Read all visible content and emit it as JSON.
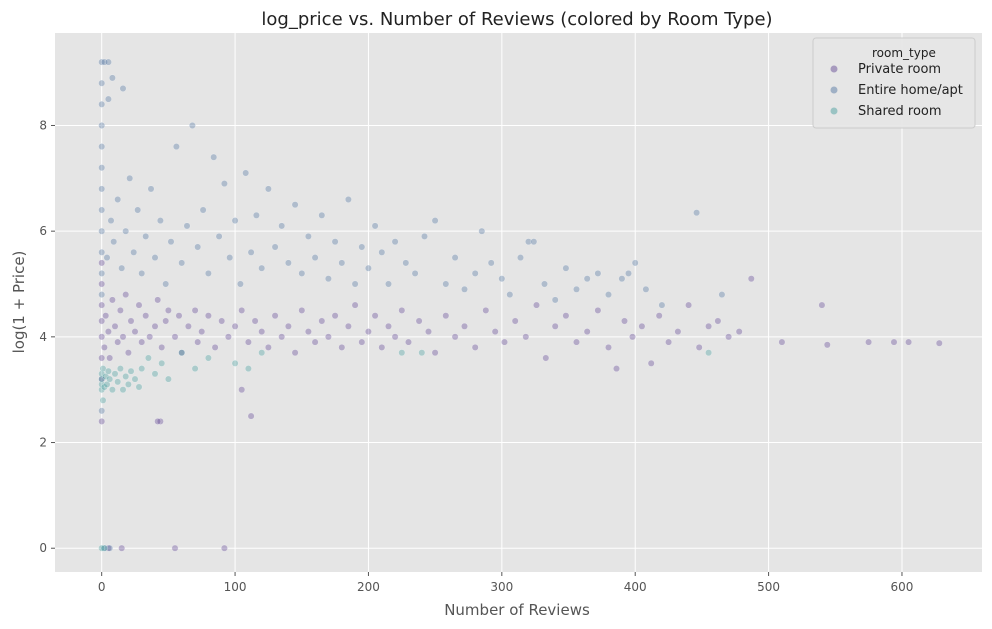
{
  "chart_data": {
    "type": "scatter",
    "title": "log_price vs. Number of Reviews (colored by Room Type)",
    "xlabel": "Number of Reviews",
    "ylabel": "log(1 + Price)",
    "xlim": [
      -35,
      660
    ],
    "ylim": [
      -0.45,
      9.75
    ],
    "xticks": [
      0,
      100,
      200,
      300,
      400,
      500,
      600
    ],
    "yticks": [
      0,
      2,
      4,
      6,
      8
    ],
    "grid": true,
    "legend_title": "room_type",
    "legend_position": "top-right",
    "point_alpha": 0.35,
    "series": [
      {
        "name": "Private room",
        "color": "#5a3d8f",
        "points": [
          [
            0,
            2.4
          ],
          [
            0,
            3.2
          ],
          [
            0,
            3.6
          ],
          [
            0,
            4.0
          ],
          [
            0,
            4.3
          ],
          [
            0,
            4.6
          ],
          [
            0,
            5.0
          ],
          [
            0,
            5.4
          ],
          [
            2,
            3.8
          ],
          [
            3,
            4.4
          ],
          [
            5,
            4.1
          ],
          [
            6,
            3.6
          ],
          [
            8,
            4.7
          ],
          [
            10,
            4.2
          ],
          [
            12,
            3.9
          ],
          [
            14,
            4.5
          ],
          [
            16,
            4.0
          ],
          [
            18,
            4.8
          ],
          [
            20,
            3.7
          ],
          [
            22,
            4.3
          ],
          [
            25,
            4.1
          ],
          [
            28,
            4.6
          ],
          [
            30,
            3.9
          ],
          [
            33,
            4.4
          ],
          [
            36,
            4.0
          ],
          [
            40,
            4.2
          ],
          [
            42,
            4.7
          ],
          [
            45,
            3.8
          ],
          [
            48,
            4.3
          ],
          [
            50,
            4.5
          ],
          [
            55,
            4.0
          ],
          [
            58,
            4.4
          ],
          [
            60,
            3.7
          ],
          [
            65,
            4.2
          ],
          [
            70,
            4.5
          ],
          [
            72,
            3.9
          ],
          [
            75,
            4.1
          ],
          [
            80,
            4.4
          ],
          [
            85,
            3.8
          ],
          [
            90,
            4.3
          ],
          [
            95,
            4.0
          ],
          [
            100,
            4.2
          ],
          [
            105,
            4.5
          ],
          [
            110,
            3.9
          ],
          [
            115,
            4.3
          ],
          [
            120,
            4.1
          ],
          [
            125,
            3.8
          ],
          [
            130,
            4.4
          ],
          [
            135,
            4.0
          ],
          [
            140,
            4.2
          ],
          [
            145,
            3.7
          ],
          [
            150,
            4.5
          ],
          [
            155,
            4.1
          ],
          [
            160,
            3.9
          ],
          [
            165,
            4.3
          ],
          [
            170,
            4.0
          ],
          [
            175,
            4.4
          ],
          [
            180,
            3.8
          ],
          [
            185,
            4.2
          ],
          [
            190,
            4.6
          ],
          [
            195,
            3.9
          ],
          [
            200,
            4.1
          ],
          [
            205,
            4.4
          ],
          [
            210,
            3.8
          ],
          [
            215,
            4.2
          ],
          [
            220,
            4.0
          ],
          [
            225,
            4.5
          ],
          [
            230,
            3.9
          ],
          [
            238,
            4.3
          ],
          [
            245,
            4.1
          ],
          [
            250,
            3.7
          ],
          [
            258,
            4.4
          ],
          [
            265,
            4.0
          ],
          [
            272,
            4.2
          ],
          [
            280,
            3.8
          ],
          [
            288,
            4.5
          ],
          [
            295,
            4.1
          ],
          [
            302,
            3.9
          ],
          [
            310,
            4.3
          ],
          [
            318,
            4.0
          ],
          [
            326,
            4.6
          ],
          [
            333,
            3.6
          ],
          [
            340,
            4.2
          ],
          [
            348,
            4.4
          ],
          [
            356,
            3.9
          ],
          [
            364,
            4.1
          ],
          [
            372,
            4.5
          ],
          [
            380,
            3.8
          ],
          [
            386,
            3.4
          ],
          [
            392,
            4.3
          ],
          [
            398,
            4.0
          ],
          [
            405,
            4.2
          ],
          [
            412,
            3.5
          ],
          [
            418,
            4.4
          ],
          [
            425,
            3.9
          ],
          [
            432,
            4.1
          ],
          [
            440,
            4.6
          ],
          [
            448,
            3.8
          ],
          [
            455,
            4.2
          ],
          [
            462,
            4.3
          ],
          [
            470,
            4.0
          ],
          [
            478,
            4.1
          ],
          [
            487,
            5.1
          ],
          [
            510,
            3.9
          ],
          [
            540,
            4.6
          ],
          [
            544,
            3.85
          ],
          [
            575,
            3.9
          ],
          [
            594,
            3.9
          ],
          [
            605,
            3.9
          ],
          [
            628,
            3.88
          ],
          [
            44,
            2.4
          ],
          [
            42,
            2.4
          ],
          [
            105,
            3.0
          ],
          [
            112,
            2.5
          ],
          [
            5,
            0
          ],
          [
            15,
            0
          ],
          [
            55,
            0
          ],
          [
            92,
            0
          ]
        ]
      },
      {
        "name": "Entire home/apt",
        "color": "#4a6f9e",
        "points": [
          [
            0,
            2.6
          ],
          [
            0,
            4.8
          ],
          [
            0,
            5.2
          ],
          [
            0,
            5.6
          ],
          [
            0,
            6.0
          ],
          [
            0,
            6.4
          ],
          [
            0,
            6.8
          ],
          [
            0,
            7.2
          ],
          [
            0,
            7.6
          ],
          [
            0,
            8.0
          ],
          [
            0,
            8.4
          ],
          [
            0,
            8.8
          ],
          [
            0,
            9.2
          ],
          [
            2,
            9.2
          ],
          [
            5,
            9.2
          ],
          [
            5,
            8.5
          ],
          [
            8,
            8.9
          ],
          [
            16,
            8.7
          ],
          [
            4,
            5.5
          ],
          [
            7,
            6.2
          ],
          [
            9,
            5.8
          ],
          [
            12,
            6.6
          ],
          [
            15,
            5.3
          ],
          [
            18,
            6.0
          ],
          [
            21,
            7.0
          ],
          [
            24,
            5.6
          ],
          [
            27,
            6.4
          ],
          [
            30,
            5.2
          ],
          [
            33,
            5.9
          ],
          [
            37,
            6.8
          ],
          [
            40,
            5.5
          ],
          [
            44,
            6.2
          ],
          [
            48,
            5.0
          ],
          [
            52,
            5.8
          ],
          [
            56,
            7.6
          ],
          [
            60,
            5.4
          ],
          [
            64,
            6.1
          ],
          [
            68,
            8.0
          ],
          [
            72,
            5.7
          ],
          [
            76,
            6.4
          ],
          [
            80,
            5.2
          ],
          [
            84,
            7.4
          ],
          [
            88,
            5.9
          ],
          [
            92,
            6.9
          ],
          [
            96,
            5.5
          ],
          [
            100,
            6.2
          ],
          [
            104,
            5.0
          ],
          [
            108,
            7.1
          ],
          [
            112,
            5.6
          ],
          [
            116,
            6.3
          ],
          [
            120,
            5.3
          ],
          [
            125,
            6.8
          ],
          [
            130,
            5.7
          ],
          [
            135,
            6.1
          ],
          [
            140,
            5.4
          ],
          [
            145,
            6.5
          ],
          [
            150,
            5.2
          ],
          [
            155,
            5.9
          ],
          [
            160,
            5.5
          ],
          [
            165,
            6.3
          ],
          [
            170,
            5.1
          ],
          [
            175,
            5.8
          ],
          [
            180,
            5.4
          ],
          [
            185,
            6.6
          ],
          [
            190,
            5.0
          ],
          [
            195,
            5.7
          ],
          [
            200,
            5.3
          ],
          [
            205,
            6.1
          ],
          [
            210,
            5.6
          ],
          [
            215,
            5.0
          ],
          [
            220,
            5.8
          ],
          [
            228,
            5.4
          ],
          [
            235,
            5.2
          ],
          [
            242,
            5.9
          ],
          [
            250,
            6.2
          ],
          [
            258,
            5.0
          ],
          [
            265,
            5.5
          ],
          [
            272,
            4.9
          ],
          [
            280,
            5.2
          ],
          [
            285,
            6.0
          ],
          [
            292,
            5.4
          ],
          [
            300,
            5.1
          ],
          [
            306,
            4.8
          ],
          [
            314,
            5.5
          ],
          [
            320,
            5.8
          ],
          [
            324,
            5.8
          ],
          [
            332,
            5.0
          ],
          [
            340,
            4.7
          ],
          [
            348,
            5.3
          ],
          [
            356,
            4.9
          ],
          [
            364,
            5.1
          ],
          [
            372,
            5.2
          ],
          [
            380,
            4.8
          ],
          [
            390,
            5.1
          ],
          [
            395,
            5.2
          ],
          [
            400,
            5.4
          ],
          [
            408,
            4.9
          ],
          [
            420,
            4.6
          ],
          [
            446,
            6.35
          ],
          [
            465,
            4.8
          ],
          [
            2,
            0
          ],
          [
            6,
            0
          ]
        ]
      },
      {
        "name": "Shared room",
        "color": "#3f9a9a",
        "points": [
          [
            0,
            3.0
          ],
          [
            0,
            3.1
          ],
          [
            0,
            3.2
          ],
          [
            0,
            3.3
          ],
          [
            1,
            3.4
          ],
          [
            2,
            3.05
          ],
          [
            3,
            3.25
          ],
          [
            4,
            3.1
          ],
          [
            5,
            3.35
          ],
          [
            6,
            3.2
          ],
          [
            8,
            3.0
          ],
          [
            10,
            3.3
          ],
          [
            12,
            3.15
          ],
          [
            14,
            3.4
          ],
          [
            16,
            3.0
          ],
          [
            18,
            3.25
          ],
          [
            20,
            3.1
          ],
          [
            22,
            3.35
          ],
          [
            25,
            3.2
          ],
          [
            28,
            3.05
          ],
          [
            30,
            3.4
          ],
          [
            35,
            3.6
          ],
          [
            40,
            3.3
          ],
          [
            45,
            3.5
          ],
          [
            50,
            3.2
          ],
          [
            60,
            3.7
          ],
          [
            70,
            3.4
          ],
          [
            80,
            3.6
          ],
          [
            100,
            3.5
          ],
          [
            110,
            3.4
          ],
          [
            120,
            3.7
          ],
          [
            225,
            3.7
          ],
          [
            240,
            3.7
          ],
          [
            455,
            3.7
          ],
          [
            1,
            2.8
          ],
          [
            2,
            0
          ],
          [
            0,
            0
          ]
        ]
      }
    ]
  }
}
